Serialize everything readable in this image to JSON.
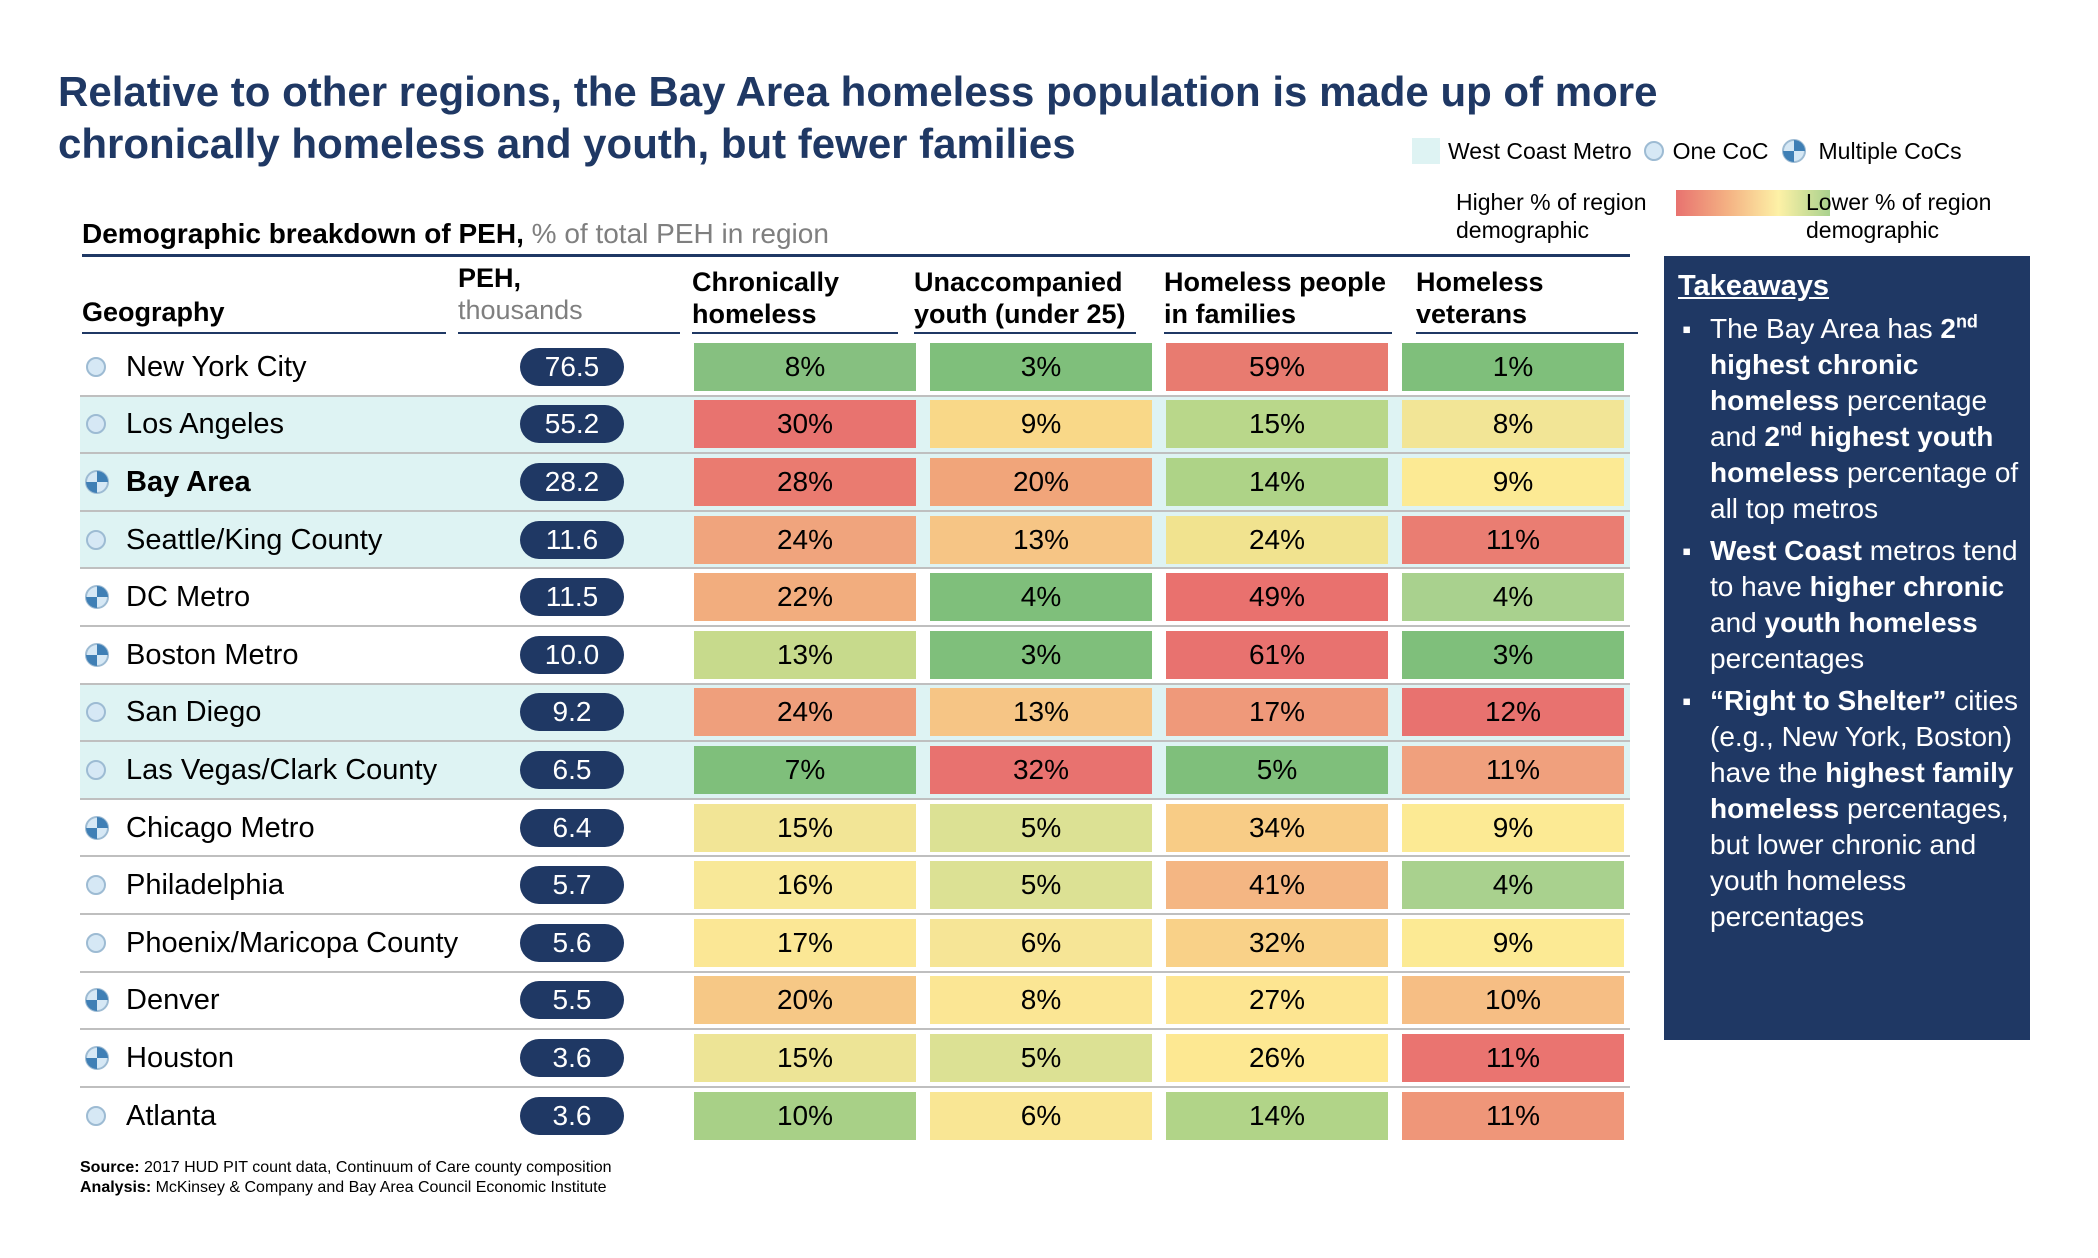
{
  "title": {
    "line1": "Relative to other regions, the Bay Area homeless population is made up of more",
    "line2": "chronically homeless and youth, but fewer families"
  },
  "legend": {
    "west_coast": "West Coast Metro",
    "one_coc": "One CoC",
    "multiple_cocs": "Multiple CoCs",
    "higher_line1": "Higher % of region",
    "higher_line2": "demographic",
    "lower_line1": "Lower % of region",
    "lower_line2": "demographic",
    "colors": {
      "west_coast_bg": "#def3f3",
      "navy": "#1f3864",
      "red": "#e8726f",
      "green": "#7fbf7b"
    }
  },
  "subtitle": {
    "bold": "Demographic breakdown of PEH,",
    "unit": "% of total PEH in region"
  },
  "columns": {
    "geography": "Geography",
    "peh_line1": "PEH,",
    "peh_line2": "thousands",
    "chronic_line1": "Chronically",
    "chronic_line2": "homeless",
    "youth_line1": "Unaccompanied",
    "youth_line2": "youth (under 25)",
    "families_line1": "Homeless people",
    "families_line2": "in families",
    "veterans_line1": "Homeless",
    "veterans_line2": "veterans"
  },
  "chart_data": {
    "type": "table",
    "title": "Relative to other regions, the Bay Area homeless population is made up of more chronically homeless and youth, but fewer families",
    "rows": [
      {
        "geo": "New York City",
        "coc": "one",
        "west_coast": false,
        "bold": false,
        "peh": "76.5",
        "chronic": "8%",
        "youth": "3%",
        "families": "59%",
        "veterans": "1%",
        "colors": [
          "#86c080",
          "#7fbf7b",
          "#e87b70",
          "#7fbf7b"
        ]
      },
      {
        "geo": "Los Angeles",
        "coc": "one",
        "west_coast": true,
        "bold": false,
        "peh": "55.2",
        "chronic": "30%",
        "youth": "9%",
        "families": "15%",
        "veterans": "8%",
        "colors": [
          "#e8736f",
          "#f9d888",
          "#b9d78a",
          "#f2e596"
        ]
      },
      {
        "geo": "Bay Area",
        "coc": "multiple",
        "west_coast": true,
        "bold": true,
        "peh": "28.2",
        "chronic": "28%",
        "youth": "20%",
        "families": "14%",
        "veterans": "9%",
        "colors": [
          "#ea7b70",
          "#f1a57a",
          "#aed387",
          "#fcea94"
        ]
      },
      {
        "geo": "Seattle/King County",
        "coc": "one",
        "west_coast": true,
        "bold": false,
        "peh": "11.6",
        "chronic": "24%",
        "youth": "13%",
        "families": "24%",
        "veterans": "11%",
        "colors": [
          "#f0a47d",
          "#f6c585",
          "#f1e38f",
          "#ea7d72"
        ]
      },
      {
        "geo": "DC Metro",
        "coc": "multiple",
        "west_coast": false,
        "bold": false,
        "peh": "11.5",
        "chronic": "22%",
        "youth": "4%",
        "families": "49%",
        "veterans": "4%",
        "colors": [
          "#f2ad7e",
          "#7fbf7b",
          "#e9716e",
          "#a9d18e"
        ]
      },
      {
        "geo": "Boston Metro",
        "coc": "multiple",
        "west_coast": false,
        "bold": false,
        "peh": "10.0",
        "chronic": "13%",
        "youth": "3%",
        "families": "61%",
        "veterans": "3%",
        "colors": [
          "#c7da8c",
          "#7fbf7b",
          "#e8726f",
          "#7fbf7b"
        ]
      },
      {
        "geo": "San Diego",
        "coc": "one",
        "west_coast": true,
        "bold": false,
        "peh": "9.2",
        "chronic": "24%",
        "youth": "13%",
        "families": "17%",
        "veterans": "12%",
        "colors": [
          "#ef9f7c",
          "#f6c585",
          "#ef997a",
          "#e8726f"
        ]
      },
      {
        "geo": "Las Vegas/Clark County",
        "coc": "one",
        "west_coast": true,
        "bold": false,
        "peh": "6.5",
        "chronic": "7%",
        "youth": "32%",
        "families": "5%",
        "veterans": "11%",
        "colors": [
          "#7fbf7b",
          "#e8726f",
          "#7fbf7b",
          "#f0a07d"
        ]
      },
      {
        "geo": "Chicago Metro",
        "coc": "multiple",
        "west_coast": false,
        "bold": false,
        "peh": "6.4",
        "chronic": "15%",
        "youth": "5%",
        "families": "34%",
        "veterans": "9%",
        "colors": [
          "#f2e596",
          "#dce194",
          "#f8cc86",
          "#fcea94"
        ]
      },
      {
        "geo": "Philadelphia",
        "coc": "one",
        "west_coast": false,
        "bold": false,
        "peh": "5.7",
        "chronic": "16%",
        "youth": "5%",
        "families": "41%",
        "veterans": "4%",
        "colors": [
          "#f8e898",
          "#dce194",
          "#f4b683",
          "#a9d18e"
        ]
      },
      {
        "geo": "Phoenix/Maricopa County",
        "coc": "one",
        "west_coast": false,
        "bold": false,
        "peh": "5.6",
        "chronic": "17%",
        "youth": "6%",
        "families": "32%",
        "veterans": "9%",
        "colors": [
          "#fbe795",
          "#f6e596",
          "#f9d188",
          "#fcea94"
        ]
      },
      {
        "geo": "Denver",
        "coc": "multiple",
        "west_coast": false,
        "bold": false,
        "peh": "5.5",
        "chronic": "20%",
        "youth": "8%",
        "families": "27%",
        "veterans": "10%",
        "colors": [
          "#f6c886",
          "#fbe694",
          "#fde591",
          "#f6be84"
        ]
      },
      {
        "geo": "Houston",
        "coc": "multiple",
        "west_coast": false,
        "bold": false,
        "peh": "3.6",
        "chronic": "15%",
        "youth": "5%",
        "families": "26%",
        "veterans": "11%",
        "colors": [
          "#ede496",
          "#dce194",
          "#fde892",
          "#ea7470"
        ]
      },
      {
        "geo": "Atlanta",
        "coc": "one",
        "west_coast": false,
        "bold": false,
        "peh": "3.6",
        "chronic": "10%",
        "youth": "6%",
        "families": "14%",
        "veterans": "11%",
        "colors": [
          "#a8d087",
          "#f9e694",
          "#b1d488",
          "#ef9679"
        ]
      }
    ]
  },
  "takeaways": {
    "title": "Takeaways",
    "b1": {
      "t1": "The Bay Area has ",
      "b1": "2",
      "s1": "nd",
      "b2": "highest chronic homeless",
      "t2": " percentage and ",
      "b3": "2",
      "s2": "nd",
      "b4": " highest youth homeless",
      "t3": " percentage of all top metros"
    },
    "b2": {
      "b1": "West Coast",
      "t1": " metros tend to have ",
      "b2": "higher chronic",
      "t2": " and ",
      "b3": "youth homeless",
      "t3": " percentages"
    },
    "b3": {
      "b1": "“Right to Shelter”",
      "t1": " cities (e.g., New York, Boston) have the ",
      "b2": "highest family homeless",
      "t2": " percentages, but lower chronic and youth homeless percentages"
    }
  },
  "footer": {
    "source_label": "Source:",
    "source": " 2017 HUD PIT count data, Continuum of Care county composition",
    "analysis_label": "Analysis:",
    "analysis": " McKinsey & Company and Bay Area Council Economic Institute"
  }
}
